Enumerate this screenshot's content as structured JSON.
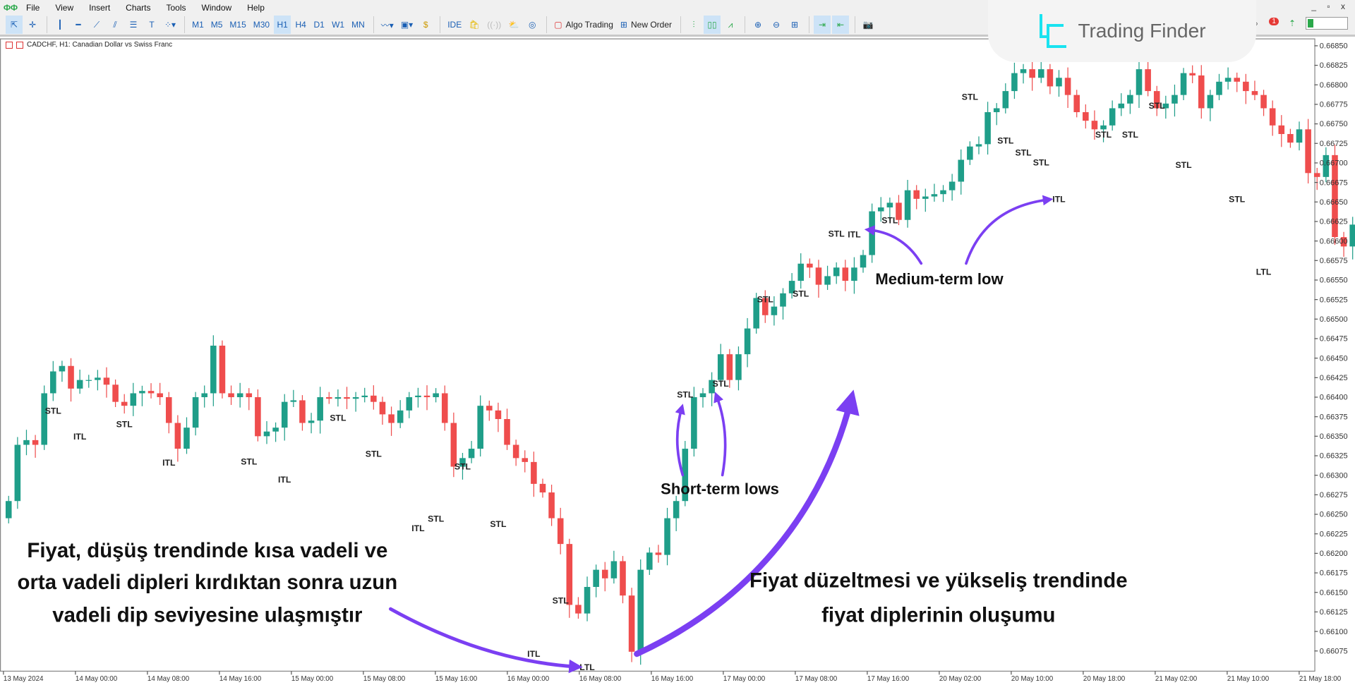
{
  "menu": {
    "items": [
      "File",
      "View",
      "Insert",
      "Charts",
      "Tools",
      "Window",
      "Help"
    ]
  },
  "toolbar": {
    "timeframes": [
      "M1",
      "M5",
      "M15",
      "M30",
      "H1",
      "H4",
      "D1",
      "W1",
      "MN"
    ],
    "active_timeframe": "H1",
    "ide": "IDE",
    "algo_trading": "Algo Trading",
    "new_order": "New Order",
    "notifications_count": "1",
    "window_controls": "_ ▫ x"
  },
  "brand": {
    "name": "Trading Finder",
    "color": "#19e3f0"
  },
  "chart": {
    "title": "CADCHF, H1:  Canadian Dollar vs Swiss Franc",
    "colors": {
      "bull": "#1f9e89",
      "bear": "#ef4d4d",
      "annotation": "#7b3ff2"
    }
  },
  "chart_data": {
    "type": "candlestick",
    "symbol": "CADCHF",
    "timeframe": "H1",
    "ylim": [
      0.6605,
      0.66862
    ],
    "y_ticks": [
      "0.66850",
      "0.66825",
      "0.66800",
      "0.66775",
      "0.66750",
      "0.66725",
      "0.66700",
      "0.66675",
      "0.66650",
      "0.66625",
      "0.66600",
      "0.66575",
      "0.66550",
      "0.66525",
      "0.66500",
      "0.66475",
      "0.66450",
      "0.66425",
      "0.66400",
      "0.66375",
      "0.66350",
      "0.66325",
      "0.66300",
      "0.66275",
      "0.66250",
      "0.66225",
      "0.66200",
      "0.66175",
      "0.66150",
      "0.66125",
      "0.66100",
      "0.66075"
    ],
    "x_ticks": [
      "13 May 2024",
      "14 May 00:00",
      "14 May 08:00",
      "14 May 16:00",
      "15 May 00:00",
      "15 May 08:00",
      "15 May 16:00",
      "16 May 00:00",
      "16 May 08:00",
      "16 May 16:00",
      "17 May 00:00",
      "17 May 08:00",
      "17 May 16:00",
      "20 May 02:00",
      "20 May 10:00",
      "20 May 18:00",
      "21 May 02:00",
      "21 May 10:00",
      "21 May 18:00"
    ],
    "first_open": 0.66245,
    "closes": [
      0.66267,
      0.66339,
      0.66345,
      0.66339,
      0.66405,
      0.66433,
      0.6644,
      0.66411,
      0.66422,
      0.66422,
      0.66425,
      0.66416,
      0.66394,
      0.66389,
      0.66405,
      0.66408,
      0.66405,
      0.664,
      0.66367,
      0.66334,
      0.66361,
      0.664,
      0.66405,
      0.66466,
      0.66405,
      0.664,
      0.66405,
      0.664,
      0.6635,
      0.66356,
      0.66361,
      0.66394,
      0.66396,
      0.66367,
      0.6637,
      0.664,
      0.66398,
      0.664,
      0.66398,
      0.664,
      0.66402,
      0.66394,
      0.66378,
      0.66367,
      0.66383,
      0.664,
      0.66402,
      0.664,
      0.66405,
      0.66367,
      0.66311,
      0.66322,
      0.66334,
      0.66389,
      0.66383,
      0.66372,
      0.66339,
      0.66322,
      0.66317,
      0.66289,
      0.66278,
      0.66245,
      0.66212,
      0.66134,
      0.66123,
      0.66157,
      0.66179,
      0.66168,
      0.6619,
      0.66146,
      0.66074,
      0.66179,
      0.66201,
      0.66198,
      0.66245,
      0.66267,
      0.66334,
      0.664,
      0.66405,
      0.66422,
      0.66455,
      0.66422,
      0.66455,
      0.66488,
      0.66527,
      0.66505,
      0.66516,
      0.66533,
      0.66549,
      0.66571,
      0.66566,
      0.66544,
      0.66555,
      0.66566,
      0.66549,
      0.66566,
      0.66582,
      0.66638,
      0.66643,
      0.66649,
      0.66627,
      0.66665,
      0.66654,
      0.66657,
      0.6666,
      0.66665,
      0.66676,
      0.66704,
      0.66721,
      0.66724,
      0.66765,
      0.6677,
      0.66792,
      0.66815,
      0.6682,
      0.66809,
      0.6682,
      0.66798,
      0.66809,
      0.66787,
      0.66765,
      0.66754,
      0.66743,
      0.66748,
      0.6677,
      0.66776,
      0.66787,
      0.6682,
      0.66792,
      0.6677,
      0.66776,
      0.66787,
      0.66815,
      0.66812,
      0.6677,
      0.66787,
      0.66804,
      0.66809,
      0.66804,
      0.66792,
      0.66787,
      0.6677,
      0.66748,
      0.66737,
      0.66726,
      0.66743,
      0.66687,
      0.66682,
      0.6671,
      0.66605,
      0.66593,
      0.66621,
      0.66654,
      0.66726,
      0.66704,
      0.66732
    ],
    "swing_labels": [
      {
        "text": "STL",
        "candle": 5,
        "price": 0.66383
      },
      {
        "text": "ITL",
        "candle": 8,
        "price": 0.6635
      },
      {
        "text": "STL",
        "candle": 13,
        "price": 0.66366
      },
      {
        "text": "ITL",
        "candle": 18,
        "price": 0.66317
      },
      {
        "text": "STL",
        "candle": 27,
        "price": 0.66318
      },
      {
        "text": "ITL",
        "candle": 31,
        "price": 0.66295
      },
      {
        "text": "STL",
        "candle": 37,
        "price": 0.66374
      },
      {
        "text": "STL",
        "candle": 41,
        "price": 0.66328
      },
      {
        "text": "ITL",
        "candle": 46,
        "price": 0.66233
      },
      {
        "text": "STL",
        "candle": 48,
        "price": 0.66245
      },
      {
        "text": "STL",
        "candle": 51,
        "price": 0.66312
      },
      {
        "text": "STL",
        "candle": 55,
        "price": 0.66238
      },
      {
        "text": "ITL",
        "candle": 59,
        "price": 0.66072
      },
      {
        "text": "STL",
        "candle": 62,
        "price": 0.6614
      },
      {
        "text": "LTL",
        "candle": 65,
        "price": 0.66055
      },
      {
        "text": "STL",
        "candle": 76,
        "price": 0.66404
      },
      {
        "text": "STL",
        "candle": 80,
        "price": 0.66418
      },
      {
        "text": "STL",
        "candle": 85,
        "price": 0.66526
      },
      {
        "text": "STL",
        "candle": 89,
        "price": 0.66533
      },
      {
        "text": "STL",
        "candle": 93,
        "price": 0.6661
      },
      {
        "text": "ITL",
        "candle": 95,
        "price": 0.66609
      },
      {
        "text": "STL",
        "candle": 99,
        "price": 0.66627
      },
      {
        "text": "STL",
        "candle": 108,
        "price": 0.66785
      },
      {
        "text": "STL",
        "candle": 112,
        "price": 0.66729
      },
      {
        "text": "STL",
        "candle": 114,
        "price": 0.66714
      },
      {
        "text": "STL",
        "candle": 116,
        "price": 0.66701
      },
      {
        "text": "ITL",
        "candle": 118,
        "price": 0.66654
      },
      {
        "text": "STL",
        "candle": 123,
        "price": 0.66737
      },
      {
        "text": "STL",
        "candle": 126,
        "price": 0.66737
      },
      {
        "text": "STL",
        "candle": 129,
        "price": 0.66774
      },
      {
        "text": "STL",
        "candle": 132,
        "price": 0.66698
      },
      {
        "text": "STL",
        "candle": 138,
        "price": 0.66654
      },
      {
        "text": "LTL",
        "candle": 141,
        "price": 0.66561
      }
    ]
  },
  "annotations": {
    "left_text": [
      "Fiyat, düşüş trendinde kısa vadeli ve",
      "orta vadeli dipleri kırdıktan sonra uzun",
      "vadeli dip seviyesine ulaşmıştır"
    ],
    "right_text": [
      "Fiyat düzeltmesi ve yükseliş trendinde",
      "fiyat diplerinin oluşumu"
    ],
    "short_term": "Short-term lows",
    "medium_term": "Medium-term low"
  }
}
